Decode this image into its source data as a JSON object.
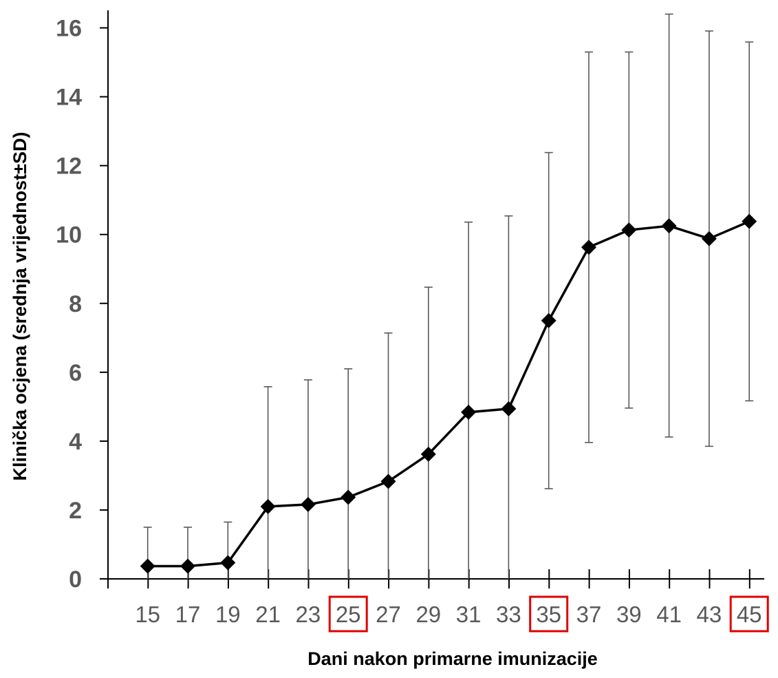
{
  "chart_data": {
    "type": "line",
    "title": "",
    "xlabel": "Dani nakon primarne imunizacije",
    "ylabel": "Klinička ocjena (srednja vrijednost±SD)",
    "ylim": [
      0,
      16
    ],
    "yticks": [
      "0",
      "2",
      "4",
      "6",
      "8",
      "10",
      "12",
      "14",
      "16"
    ],
    "categories": [
      "15",
      "17",
      "19",
      "21",
      "23",
      "25",
      "27",
      "29",
      "31",
      "33",
      "35",
      "37",
      "39",
      "41",
      "43",
      "45"
    ],
    "highlighted_categories": [
      "25",
      "35",
      "45"
    ],
    "series": [
      {
        "values": [
          0.37,
          0.37,
          0.47,
          2.1,
          2.16,
          2.37,
          2.83,
          3.62,
          4.84,
          4.94,
          7.5,
          9.63,
          10.13,
          10.25,
          9.88,
          10.38
        ],
        "sd_upper": [
          1.5,
          1.5,
          1.65,
          5.58,
          5.78,
          6.1,
          7.14,
          8.47,
          10.36,
          10.54,
          12.38,
          15.3,
          15.3,
          16.4,
          15.91,
          15.59
        ],
        "sd_lower": [
          0,
          0,
          0,
          0,
          0,
          0,
          0,
          0,
          0,
          0,
          2.62,
          3.96,
          4.96,
          4.12,
          3.85,
          5.17
        ]
      }
    ],
    "grid": false,
    "legend": "none",
    "colors": {
      "line": "#000000",
      "marker": "#000000",
      "error_bar": "#595959",
      "highlight_box": "#e00000",
      "tick_text": "#595959"
    },
    "marker": "diamond"
  }
}
